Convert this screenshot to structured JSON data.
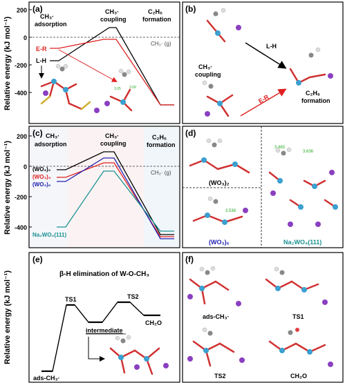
{
  "panels": {
    "a": {
      "letter": "(a)",
      "phase_labels": [
        {
          "line1": "CH₃·",
          "line2": "adsorption"
        },
        {
          "line1": "CH₃·",
          "line2": "coupling"
        },
        {
          "line1": "C₂H₆",
          "line2": "formation"
        }
      ],
      "ref_label": "CH₃· (g)",
      "ylabel": "Relative energy (kJ mol⁻¹)",
      "yticks": [
        "200",
        "0",
        "-200",
        "-400"
      ],
      "path_labels": {
        "er": "E-R",
        "lh": "L-H"
      },
      "atoms": [
        "3.05",
        "3.09"
      ]
    },
    "b": {
      "letter": "(b)",
      "label_coupling": {
        "line1": "CH₃·",
        "line2": "coupling"
      },
      "label_formation": {
        "line1": "C₂H₆",
        "line2": "formation"
      },
      "lh": "L-H",
      "er": "E-R"
    },
    "c": {
      "letter": "(c)",
      "phase_labels": [
        {
          "line1": "CH₃·",
          "line2": "adsorption"
        },
        {
          "line1": "CH₃·",
          "line2": "coupling"
        },
        {
          "line1": "C₂H₆",
          "line2": "formation"
        }
      ],
      "ref_label": "CH₃· (g)",
      "ylabel": "Relative energy (kJ mol⁻¹)",
      "yticks": [
        "200",
        "0",
        "-200",
        "-400"
      ],
      "series_labels": [
        "(WO₃)₂",
        "(WO₃)₄",
        "(WO₃)₆",
        "Na₂WO₄(111)"
      ],
      "colors": {
        "wo2": "#000000",
        "wo4": "#e02020",
        "wo6": "#2020b0",
        "na": "#1a9090"
      }
    },
    "d": {
      "letter": "(d)",
      "labels": [
        "(WO₃)₂",
        "(WO₃)₆",
        "Na₂WO₄(111)"
      ],
      "distances": [
        "3.483",
        "3.636",
        "3.538"
      ]
    },
    "e": {
      "letter": "(e)",
      "title": "β-H elimination of W-O-CH₃",
      "ylabel": "Relative energy (kJ mol⁻¹)",
      "states": [
        "ads-CH₃·",
        "TS1",
        "intermediate",
        "TS2",
        "CH₂O"
      ]
    },
    "f": {
      "letter": "(f)",
      "labels": [
        "ads-CH₃·",
        "TS1",
        "TS2",
        "CH₂O"
      ]
    }
  }
}
